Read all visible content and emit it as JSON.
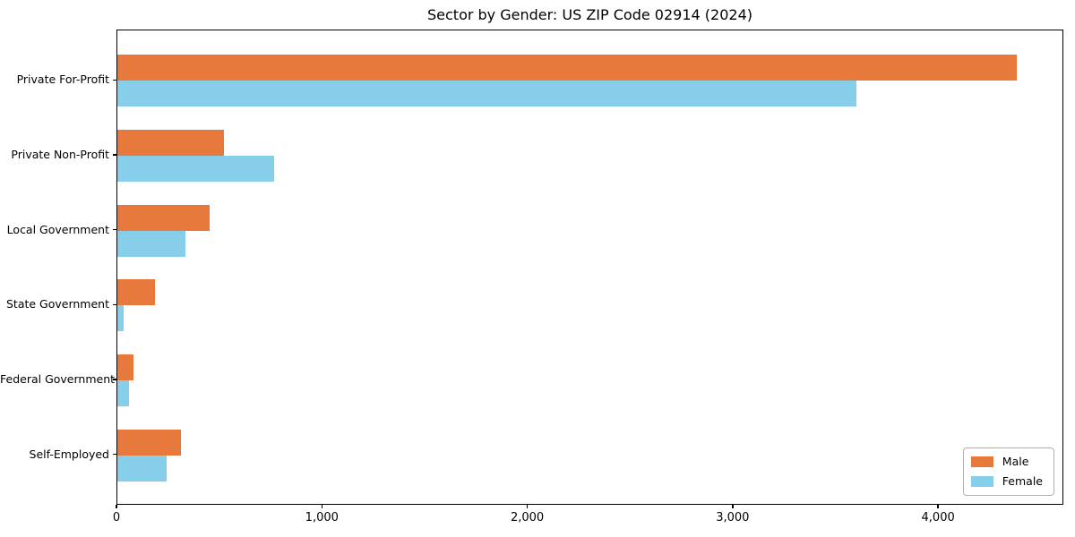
{
  "title": "Sector by Gender: US ZIP Code 02914 (2024)",
  "colors": {
    "male": "#E8793D",
    "female": "#87CEEB",
    "axis": "#000000",
    "text": "#000000",
    "legend_border": "#B0B0B0",
    "background": "#FFFFFF"
  },
  "legend": {
    "position": "lower right",
    "items": [
      "Male",
      "Female"
    ]
  },
  "chart_data": {
    "type": "bar",
    "orientation": "horizontal",
    "title": "Sector by Gender: US ZIP Code 02914 (2024)",
    "categories": [
      "Private For-Profit",
      "Private Non-Profit",
      "Local Government",
      "State Government",
      "Federal Government",
      "Self-Employed"
    ],
    "series": [
      {
        "name": "Male",
        "color": "#E8793D",
        "values": [
          4380,
          520,
          450,
          185,
          77,
          310
        ]
      },
      {
        "name": "Female",
        "color": "#87CEEB",
        "values": [
          3600,
          765,
          330,
          30,
          58,
          240
        ]
      }
    ],
    "xlabel": "",
    "ylabel": "",
    "xlim": [
      0,
      4610
    ],
    "xticks": [
      0,
      1000,
      2000,
      3000,
      4000
    ],
    "xtick_labels": [
      "0",
      "1,000",
      "2,000",
      "3,000",
      "4,000"
    ],
    "grid": false,
    "legend_position": "lower right"
  }
}
